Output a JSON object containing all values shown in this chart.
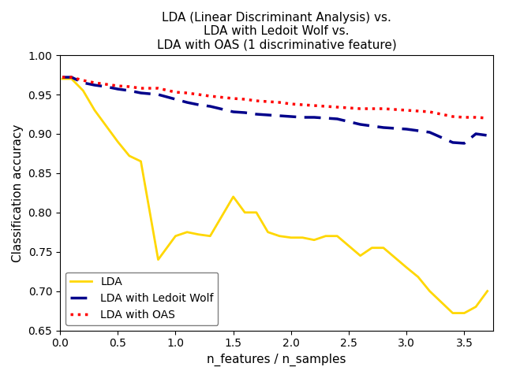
{
  "title": "LDA (Linear Discriminant Analysis) vs.\nLDA with Ledoit Wolf vs.\nLDA with OAS (1 discriminative feature)",
  "xlabel": "n_features / n_samples",
  "ylabel": "Classification accuracy",
  "xlim": [
    0.0,
    3.75
  ],
  "ylim": [
    0.65,
    1.0
  ],
  "lda_x": [
    0.02,
    0.1,
    0.2,
    0.3,
    0.4,
    0.5,
    0.6,
    0.7,
    0.85,
    1.0,
    1.1,
    1.2,
    1.3,
    1.5,
    1.6,
    1.7,
    1.8,
    1.9,
    2.0,
    2.1,
    2.2,
    2.3,
    2.4,
    2.6,
    2.7,
    2.8,
    3.0,
    3.1,
    3.2,
    3.4,
    3.5,
    3.6,
    3.7
  ],
  "lda_y": [
    0.97,
    0.97,
    0.955,
    0.93,
    0.91,
    0.89,
    0.872,
    0.865,
    0.74,
    0.77,
    0.775,
    0.772,
    0.77,
    0.82,
    0.8,
    0.8,
    0.775,
    0.77,
    0.768,
    0.768,
    0.765,
    0.77,
    0.77,
    0.745,
    0.755,
    0.755,
    0.73,
    0.718,
    0.7,
    0.672,
    0.672,
    0.68,
    0.7
  ],
  "ledoit_x": [
    0.02,
    0.1,
    0.2,
    0.3,
    0.4,
    0.5,
    0.6,
    0.7,
    0.85,
    1.0,
    1.1,
    1.2,
    1.3,
    1.5,
    1.6,
    1.7,
    1.8,
    1.9,
    2.0,
    2.1,
    2.2,
    2.3,
    2.4,
    2.6,
    2.7,
    2.8,
    3.0,
    3.1,
    3.2,
    3.4,
    3.5,
    3.6,
    3.7
  ],
  "ledoit_y": [
    0.972,
    0.972,
    0.965,
    0.962,
    0.96,
    0.957,
    0.955,
    0.952,
    0.95,
    0.944,
    0.94,
    0.937,
    0.935,
    0.928,
    0.927,
    0.925,
    0.924,
    0.923,
    0.922,
    0.921,
    0.921,
    0.92,
    0.919,
    0.912,
    0.91,
    0.908,
    0.906,
    0.904,
    0.902,
    0.889,
    0.888,
    0.9,
    0.898
  ],
  "oas_x": [
    0.02,
    0.1,
    0.2,
    0.3,
    0.4,
    0.5,
    0.6,
    0.7,
    0.85,
    1.0,
    1.1,
    1.2,
    1.3,
    1.5,
    1.6,
    1.7,
    1.8,
    1.9,
    2.0,
    2.1,
    2.2,
    2.3,
    2.4,
    2.6,
    2.7,
    2.8,
    3.0,
    3.1,
    3.2,
    3.4,
    3.5,
    3.6,
    3.7
  ],
  "oas_y": [
    0.972,
    0.972,
    0.968,
    0.965,
    0.963,
    0.961,
    0.96,
    0.958,
    0.958,
    0.953,
    0.952,
    0.95,
    0.948,
    0.945,
    0.944,
    0.942,
    0.941,
    0.94,
    0.938,
    0.937,
    0.936,
    0.935,
    0.934,
    0.932,
    0.932,
    0.932,
    0.93,
    0.929,
    0.928,
    0.922,
    0.921,
    0.921,
    0.92
  ],
  "lda_color": "#FFD700",
  "ledoit_color": "#00008B",
  "oas_color": "#FF0000",
  "lda_label": "LDA",
  "ledoit_label": "LDA with Ledoit Wolf",
  "oas_label": "LDA with OAS",
  "title_fontsize": 11,
  "axis_fontsize": 11,
  "legend_fontsize": 10,
  "lda_linewidth": 2.0,
  "other_linewidth": 2.5,
  "xticks": [
    0.0,
    0.5,
    1.0,
    1.5,
    2.0,
    2.5,
    3.0,
    3.5
  ],
  "yticks": [
    0.65,
    0.7,
    0.75,
    0.8,
    0.85,
    0.9,
    0.95,
    1.0
  ]
}
